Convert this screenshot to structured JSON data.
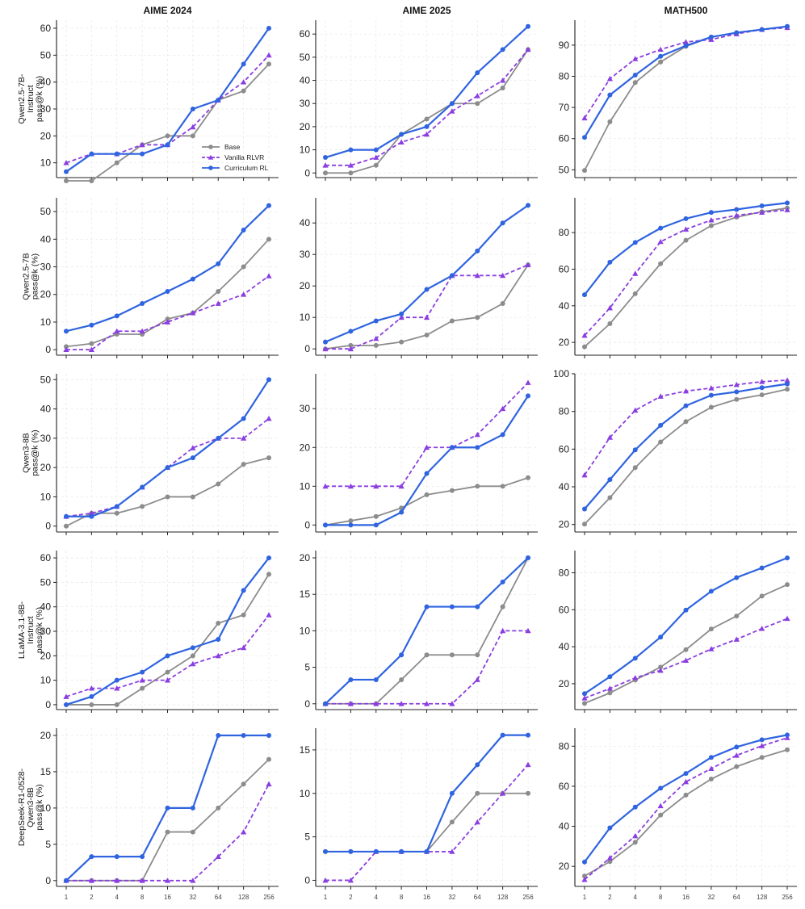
{
  "chart_data": {
    "type": "line",
    "x": [
      "1",
      "2",
      "4",
      "8",
      "16",
      "32",
      "64",
      "128",
      "256"
    ],
    "columns": [
      "AIME 2024",
      "AIME 2025",
      "MATH500"
    ],
    "row_labels": [
      [
        "Qwen2.5-7B-",
        "Instruct",
        "pass@k (%)"
      ],
      [
        "Qwen2.5-7B",
        "pass@k (%)"
      ],
      [
        "Qwen3-8B",
        "pass@k (%)"
      ],
      [
        "LLaMA-3.1-8B-",
        "Instruct",
        "pass@k (%)"
      ],
      [
        "DeepSeek-R1-0528-",
        "Qwen3-8B",
        "pass@k (%)"
      ]
    ],
    "series_names": [
      "Base",
      "Vanilla RLVR",
      "Curriculum RL"
    ],
    "colors": {
      "Base": "#8c8c8c",
      "Vanilla RLVR": "#8a3ee0",
      "Curriculum RL": "#2f64e0"
    },
    "legend_position": "lower-right (first panel)",
    "grid": true,
    "panels": [
      [
        {
          "ylim": [
            4.5,
            63
          ],
          "yticks": [
            10,
            20,
            30,
            40,
            50,
            60
          ],
          "series": {
            "Base": [
              3.3,
              3.3,
              10,
              16.7,
              20,
              20,
              33.3,
              36.7,
              46.7
            ],
            "Vanilla RLVR": [
              10,
              13.3,
              13.3,
              16.7,
              16.7,
              23.3,
              33.3,
              40,
              50
            ],
            "Curriculum RL": [
              6.7,
              13.3,
              13.3,
              13.3,
              16.7,
              30,
              33.3,
              46.7,
              60
            ]
          }
        },
        {
          "ylim": [
            -2,
            66
          ],
          "yticks": [
            0,
            10,
            20,
            30,
            40,
            50,
            60
          ],
          "series": {
            "Base": [
              0,
              0,
              3.3,
              16.7,
              23.3,
              30,
              30,
              36.7,
              53.3
            ],
            "Vanilla RLVR": [
              3.3,
              3.3,
              6.7,
              13.3,
              16.7,
              26.7,
              33.3,
              40,
              53.3
            ],
            "Curriculum RL": [
              6.7,
              10,
              10,
              16.7,
              20,
              30,
              43.3,
              53.3,
              63.3
            ]
          }
        },
        {
          "ylim": [
            47.5,
            98
          ],
          "yticks": [
            50,
            60,
            70,
            80,
            90
          ],
          "series": {
            "Base": [
              49.8,
              65.4,
              78,
              84.6,
              89.6,
              92.6,
              94,
              95,
              96
            ],
            "Vanilla RLVR": [
              66.6,
              79.2,
              85.6,
              88.6,
              91,
              91.8,
              93.6,
              95,
              95.6
            ],
            "Curriculum RL": [
              60.4,
              74,
              80.4,
              86.4,
              89.8,
              92.6,
              94,
              95,
              96
            ]
          }
        }
      ],
      [
        {
          "ylim": [
            -2,
            55
          ],
          "yticks": [
            0,
            10,
            20,
            30,
            40,
            50
          ],
          "series": {
            "Base": [
              1.1,
              2.2,
              5.6,
              5.6,
              11.1,
              13.3,
              21.1,
              30,
              40
            ],
            "Vanilla RLVR": [
              0,
              0,
              6.7,
              6.7,
              10,
              13.3,
              16.7,
              20,
              26.7
            ],
            "Curriculum RL": [
              6.7,
              8.9,
              12.2,
              16.7,
              21.1,
              25.6,
              31.1,
              43.3,
              52.2
            ]
          }
        },
        {
          "ylim": [
            -2,
            48
          ],
          "yticks": [
            0,
            10,
            20,
            30,
            40
          ],
          "series": {
            "Base": [
              0,
              1.1,
              1.1,
              2.2,
              4.4,
              8.9,
              10,
              14.4,
              26.7
            ],
            "Vanilla RLVR": [
              0,
              0,
              3.3,
              10,
              10,
              23.3,
              23.3,
              23.3,
              26.7
            ],
            "Curriculum RL": [
              2.2,
              5.6,
              8.9,
              11.1,
              18.9,
              23.3,
              31.1,
              40,
              45.6
            ]
          }
        },
        {
          "ylim": [
            13,
            99
          ],
          "yticks": [
            20,
            40,
            60,
            80
          ],
          "series": {
            "Base": [
              17.6,
              30.2,
              46.6,
              63,
              75.8,
              83.8,
              88.4,
              91.4,
              93.4
            ],
            "Vanilla RLVR": [
              23.8,
              38.8,
              57.6,
              75,
              81.8,
              86.8,
              89.4,
              91,
              92.4
            ],
            "Curriculum RL": [
              46,
              63.8,
              74.6,
              82.4,
              87.6,
              91,
              92.6,
              94.6,
              96.2
            ]
          }
        }
      ],
      [
        {
          "ylim": [
            -2,
            52
          ],
          "yticks": [
            0,
            10,
            20,
            30,
            40,
            50
          ],
          "series": {
            "Base": [
              0,
              4.4,
              4.4,
              6.7,
              10,
              10,
              14.4,
              21.1,
              23.3
            ],
            "Vanilla RLVR": [
              3.3,
              4.4,
              6.7,
              13.3,
              20,
              26.7,
              30,
              30,
              36.7
            ],
            "Curriculum RL": [
              3.3,
              3.3,
              6.7,
              13.3,
              20,
              23.3,
              30,
              36.7,
              50
            ]
          }
        },
        {
          "ylim": [
            -1.8,
            39
          ],
          "yticks": [
            0,
            10,
            20,
            30
          ],
          "series": {
            "Base": [
              0,
              1.1,
              2.2,
              4.4,
              7.8,
              8.9,
              10,
              10,
              12.2
            ],
            "Vanilla RLVR": [
              10,
              10,
              10,
              10,
              20,
              20,
              23.3,
              30,
              36.7
            ],
            "Curriculum RL": [
              0,
              0,
              0,
              3.3,
              13.3,
              20,
              20,
              23.3,
              33.3
            ]
          }
        },
        {
          "ylim": [
            16,
            100
          ],
          "yticks": [
            20,
            40,
            60,
            80,
            100
          ],
          "series": {
            "Base": [
              20.2,
              34.2,
              50.2,
              63.8,
              74.6,
              82.2,
              86.4,
              88.8,
              91.8
            ],
            "Vanilla RLVR": [
              46.2,
              66.2,
              80.6,
              88,
              90.8,
              92.4,
              94.2,
              95.8,
              96.6
            ],
            "Curriculum RL": [
              28.2,
              43.8,
              59.6,
              72.6,
              83,
              88.6,
              90.4,
              92.6,
              94.6
            ]
          }
        }
      ],
      [
        {
          "ylim": [
            -2,
            63
          ],
          "yticks": [
            0,
            10,
            20,
            30,
            40,
            50,
            60
          ],
          "series": {
            "Base": [
              0,
              0,
              0,
              6.7,
              13.3,
              20,
              33.3,
              36.7,
              53.3
            ],
            "Vanilla RLVR": [
              3.3,
              6.7,
              6.7,
              10,
              10,
              16.7,
              20,
              23.3,
              36.7
            ],
            "Curriculum RL": [
              0,
              3.3,
              10,
              13.3,
              20,
              23.3,
              26.7,
              46.7,
              60
            ]
          }
        },
        {
          "ylim": [
            -0.8,
            21
          ],
          "yticks": [
            0,
            5,
            10,
            15,
            20
          ],
          "series": {
            "Base": [
              0,
              0,
              0,
              3.3,
              6.7,
              6.7,
              6.7,
              13.3,
              20
            ],
            "Vanilla RLVR": [
              0,
              0,
              0,
              0,
              0,
              0,
              3.3,
              10,
              10
            ],
            "Curriculum RL": [
              0,
              3.3,
              3.3,
              6.7,
              13.3,
              13.3,
              13.3,
              16.7,
              20
            ]
          }
        },
        {
          "ylim": [
            6,
            92
          ],
          "yticks": [
            20,
            40,
            60,
            80
          ],
          "series": {
            "Base": [
              9.4,
              15,
              22,
              29,
              38.4,
              49.6,
              56.6,
              67.4,
              73.6
            ],
            "Vanilla RLVR": [
              12.2,
              17.4,
              23.2,
              27.2,
              32.6,
              38.8,
              44,
              49.8,
              55.2
            ],
            "Curriculum RL": [
              14.6,
              23.8,
              33.8,
              45.2,
              59.8,
              70,
              77.4,
              82.6,
              88
            ]
          }
        }
      ],
      [
        {
          "ylim": [
            -0.8,
            21
          ],
          "yticks": [
            0,
            5,
            10,
            15,
            20
          ],
          "series": {
            "Base": [
              0,
              0,
              0,
              0,
              6.7,
              6.7,
              10,
              13.3,
              16.7
            ],
            "Vanilla RLVR": [
              0,
              0,
              0,
              0,
              0,
              0,
              3.3,
              6.7,
              13.3
            ],
            "Curriculum RL": [
              0,
              3.3,
              3.3,
              3.3,
              10,
              10,
              20,
              20,
              20
            ]
          }
        },
        {
          "ylim": [
            -0.7,
            17.5
          ],
          "yticks": [
            0,
            5,
            10,
            15
          ],
          "series": {
            "Base": [
              3.3,
              3.3,
              3.3,
              3.3,
              3.3,
              6.7,
              10,
              10,
              10
            ],
            "Vanilla RLVR": [
              0,
              0,
              3.3,
              3.3,
              3.3,
              3.3,
              6.7,
              10,
              13.3
            ],
            "Curriculum RL": [
              3.3,
              3.3,
              3.3,
              3.3,
              3.3,
              10,
              13.3,
              16.7,
              16.7
            ]
          }
        },
        {
          "ylim": [
            10,
            89
          ],
          "yticks": [
            20,
            40,
            60,
            80
          ],
          "series": {
            "Base": [
              15.2,
              22.4,
              32,
              45.6,
              55.6,
              63.6,
              69.8,
              74.4,
              78.2
            ],
            "Vanilla RLVR": [
              13.4,
              24.2,
              35.2,
              50.2,
              62.2,
              68.8,
              75.4,
              80.2,
              84.2
            ],
            "Curriculum RL": [
              22.2,
              39.2,
              49.6,
              59,
              66.4,
              74.4,
              79.6,
              83.2,
              85.6
            ]
          }
        }
      ]
    ]
  }
}
